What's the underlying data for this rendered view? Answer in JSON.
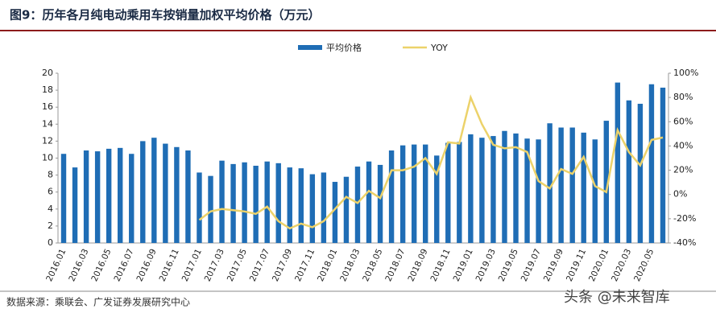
{
  "header": {
    "title": "图9：历年各月纯电动乘用车按销量加权平均价格（万元）"
  },
  "chart_data": {
    "type": "bar-line",
    "categories": [
      "2016.01",
      null,
      "2016.03",
      null,
      "2016.05",
      null,
      "2016.07",
      null,
      "2016.09",
      null,
      "2016.11",
      null,
      "2017.01",
      null,
      "2017.03",
      null,
      "2017.05",
      null,
      "2017.07",
      null,
      "2017.09",
      null,
      "2017.11",
      null,
      "2018.01",
      null,
      "2018.03",
      null,
      "2018.05",
      null,
      "2018.07",
      null,
      "2018.09",
      null,
      "2018.11",
      null,
      "2019.01",
      null,
      "2019.03",
      null,
      "2019.05",
      null,
      "2019.07",
      null,
      "2019.09",
      null,
      "2019.11",
      null,
      "2020.01",
      null,
      "2020.03",
      null,
      "2020.05",
      null
    ],
    "series": [
      {
        "name": "平均价格",
        "color": "#1f6db5",
        "kind": "bar",
        "values": [
          10.5,
          8.9,
          10.9,
          10.8,
          11.1,
          11.2,
          10.5,
          12.0,
          12.4,
          11.7,
          11.3,
          10.9,
          8.3,
          7.9,
          9.7,
          9.3,
          9.5,
          9.1,
          9.6,
          9.4,
          8.9,
          8.8,
          8.1,
          8.3,
          7.2,
          7.8,
          9.0,
          9.6,
          9.2,
          10.9,
          11.5,
          11.6,
          11.6,
          10.3,
          11.8,
          11.9,
          12.8,
          12.4,
          12.6,
          13.2,
          12.9,
          12.3,
          12.2,
          14.1,
          13.6,
          13.6,
          13.0,
          12.2,
          14.4,
          18.9,
          16.8,
          16.4,
          18.7,
          18.3
        ]
      },
      {
        "name": "YOY",
        "color": "#ecd26a",
        "kind": "line",
        "axis": "y2",
        "values": [
          null,
          null,
          null,
          null,
          null,
          null,
          null,
          null,
          null,
          null,
          null,
          null,
          -21,
          -14,
          -12,
          -13,
          -14,
          -16,
          -10,
          -22,
          -28,
          -24,
          -27,
          -22,
          -12,
          -2,
          -7,
          3,
          -3,
          20,
          20,
          23,
          30,
          17,
          43,
          42,
          80,
          58,
          41,
          38,
          39,
          35,
          11,
          5,
          21,
          17,
          31,
          7,
          2,
          53,
          35,
          24,
          45,
          47
        ]
      }
    ],
    "ylim": [
      0,
      20
    ],
    "yticks": [
      0,
      2,
      4,
      6,
      8,
      10,
      12,
      14,
      16,
      18,
      20
    ],
    "y2lim": [
      -40,
      100
    ],
    "y2ticks": [
      {
        "value": -40,
        "label": "-40%"
      },
      {
        "value": -20,
        "label": "-20%"
      },
      {
        "value": 0,
        "label": "0%"
      },
      {
        "value": 20,
        "label": "20%"
      },
      {
        "value": 40,
        "label": "40%"
      },
      {
        "value": 60,
        "label": "60%"
      },
      {
        "value": 80,
        "label": "80%"
      },
      {
        "value": 100,
        "label": "100%"
      }
    ],
    "legend": "top"
  },
  "footer": {
    "source": "数据来源：乘联会、广发证券发展研究中心",
    "watermark": "头条 @未来智库"
  }
}
